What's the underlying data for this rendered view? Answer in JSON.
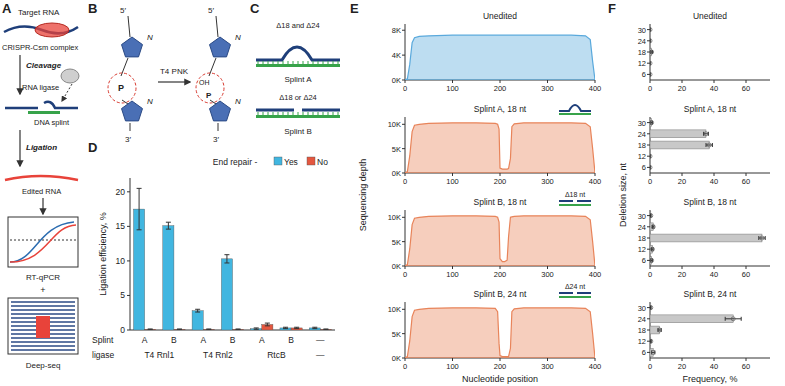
{
  "panel_labels": [
    "A",
    "B",
    "C",
    "D",
    "E",
    "F"
  ],
  "diagram_a": {
    "target": "Target RNA",
    "complex": "CRISPR-Csm complex",
    "cleavage": "Cleavage",
    "ligase": "RNA ligase",
    "splint": "DNA splint",
    "ligation": "Ligation",
    "edited": "Edited RNA",
    "qpcr": "RT-qPCR",
    "plus": "+",
    "seq": "Deep-seq"
  },
  "diagram_b": {
    "five": "5′",
    "three": "3′",
    "enzyme": "T4 PNK",
    "base": "N",
    "phosphate": "P",
    "hydroxyl": "OH"
  },
  "diagram_c": {
    "top": "Δ18 and Δ24",
    "a": "Splint A",
    "mid": "Δ18 or Δ24",
    "b": "Splint B"
  },
  "panel_e": {
    "x_label": "Nucleotide position",
    "y_label": "Sequencing depth"
  },
  "panel_f": {
    "x_label": "Frequency, %",
    "y_label": "Deletion size, nt"
  },
  "chart_data": [
    {
      "type": "bar",
      "y_label": "Ligation efficiency, %",
      "categories": [
        "A",
        "B",
        "A",
        "B",
        "A",
        "B",
        "—"
      ],
      "group_labels": [
        "T4 Rnl1",
        "T4 Rnl1",
        "T4 Rnl2",
        "T4 Rnl2",
        "RtcB",
        "RtcB",
        "—"
      ],
      "row_labels": [
        "Splint",
        "ligase"
      ],
      "legend_title": "End repair -",
      "legend": "top-right",
      "series": [
        {
          "name": "Yes",
          "color": "#41b6e0",
          "values": [
            17.5,
            15.1,
            2.8,
            10.3,
            0.2,
            0.3,
            0.3
          ],
          "errors": [
            3.0,
            0.5,
            0.2,
            0.6,
            0.1,
            0.1,
            0.1
          ]
        },
        {
          "name": "No",
          "color": "#e4573f",
          "values": [
            0.1,
            0.1,
            0.1,
            0.1,
            0.8,
            0.3,
            0.1
          ],
          "errors": [
            0.05,
            0.05,
            0.05,
            0.05,
            0.2,
            0.1,
            0.05
          ]
        }
      ],
      "ylim": [
        0,
        22
      ],
      "yticks": [
        0,
        5,
        10,
        15,
        20
      ]
    },
    {
      "type": "area",
      "title": "Unedited",
      "color": "#5aa9dc",
      "x": [
        0,
        5,
        10,
        15,
        20,
        30,
        50,
        100,
        150,
        190,
        195,
        198,
        200,
        205,
        210,
        215,
        218,
        222,
        225,
        230,
        250,
        300,
        350,
        380,
        390,
        395,
        400
      ],
      "values": [
        0,
        200,
        2500,
        6000,
        6800,
        7000,
        7100,
        7200,
        7200,
        7200,
        7200,
        7200,
        7200,
        7200,
        7200,
        7200,
        7200,
        7200,
        7200,
        7200,
        7200,
        7200,
        7200,
        7100,
        6500,
        3000,
        0
      ],
      "xlim": [
        0,
        400
      ],
      "xticks": [
        0,
        100,
        200,
        300,
        400
      ],
      "ylim": [
        0,
        9000
      ],
      "yticks": [
        {
          "value": 0,
          "label": "0K"
        },
        {
          "value": 4000,
          "label": "4K"
        },
        {
          "value": 8000,
          "label": "8K"
        }
      ]
    },
    {
      "type": "area",
      "title": "Splint A, 18 nt",
      "color": "#e8845a",
      "x": [
        0,
        5,
        10,
        15,
        20,
        30,
        50,
        100,
        150,
        190,
        195,
        198,
        200,
        205,
        210,
        215,
        218,
        222,
        225,
        230,
        250,
        300,
        350,
        380,
        390,
        395,
        400
      ],
      "values": [
        0,
        300,
        3500,
        8500,
        9800,
        10000,
        10200,
        10300,
        10300,
        10200,
        10000,
        9000,
        1000,
        800,
        800,
        800,
        900,
        3000,
        9500,
        10100,
        10300,
        10300,
        10300,
        10200,
        9500,
        5000,
        0
      ],
      "xlim": [
        0,
        400
      ],
      "xticks": [
        0,
        100,
        200,
        300,
        400
      ],
      "ylim": [
        0,
        11500
      ],
      "yticks": [
        {
          "value": 0,
          "label": "0K"
        },
        {
          "value": 5000,
          "label": "5K"
        },
        {
          "value": 10000,
          "label": "10K"
        }
      ]
    },
    {
      "type": "area",
      "title": "Splint B, 18 nt",
      "annotation": "Δ18 nt",
      "color": "#e8845a",
      "x": [
        0,
        5,
        10,
        15,
        20,
        30,
        50,
        100,
        150,
        190,
        195,
        198,
        200,
        205,
        210,
        215,
        218,
        222,
        225,
        230,
        250,
        300,
        350,
        380,
        390,
        395,
        400
      ],
      "values": [
        0,
        300,
        3500,
        8500,
        9800,
        10000,
        10200,
        10300,
        10300,
        10200,
        10000,
        9000,
        1500,
        900,
        900,
        1200,
        6000,
        10000,
        10100,
        10200,
        10300,
        10300,
        10300,
        10200,
        9500,
        5000,
        0
      ],
      "xlim": [
        0,
        400
      ],
      "xticks": [
        0,
        100,
        200,
        300,
        400
      ],
      "ylim": [
        0,
        11500
      ],
      "yticks": [
        {
          "value": 0,
          "label": "0K"
        },
        {
          "value": 5000,
          "label": "5K"
        },
        {
          "value": 10000,
          "label": "10K"
        }
      ]
    },
    {
      "type": "area",
      "title": "Splint B, 24 nt",
      "annotation": "Δ24 nt",
      "color": "#e8845a",
      "x": [
        0,
        5,
        10,
        15,
        20,
        30,
        50,
        100,
        150,
        190,
        195,
        198,
        200,
        205,
        210,
        215,
        218,
        222,
        225,
        230,
        250,
        300,
        350,
        380,
        390,
        395,
        400
      ],
      "values": [
        0,
        300,
        3500,
        8500,
        9800,
        10000,
        10200,
        10300,
        10300,
        10200,
        9500,
        3000,
        500,
        300,
        300,
        300,
        300,
        2000,
        9500,
        10100,
        10300,
        10300,
        10300,
        10200,
        9500,
        5000,
        0
      ],
      "xlim": [
        0,
        400
      ],
      "xticks": [
        0,
        100,
        200,
        300,
        400
      ],
      "ylim": [
        0,
        11500
      ],
      "yticks": [
        {
          "value": 0,
          "label": "0K"
        },
        {
          "value": 5000,
          "label": "5K"
        },
        {
          "value": 10000,
          "label": "10K"
        }
      ]
    },
    {
      "type": "bar",
      "orientation": "horizontal",
      "title": "Unedited",
      "categories": [
        "6",
        "12",
        "18",
        "24",
        "30"
      ],
      "values": [
        0,
        0,
        1,
        0,
        0
      ],
      "errors": [
        0,
        0,
        0.5,
        0,
        0
      ],
      "color": "#c8c8c8",
      "xlim": [
        0,
        75
      ],
      "xticks": [
        0,
        20,
        40,
        60
      ]
    },
    {
      "type": "bar",
      "orientation": "horizontal",
      "title": "Splint A, 18 nt",
      "categories": [
        "6",
        "12",
        "18",
        "24",
        "30"
      ],
      "values": [
        0,
        0,
        37,
        35,
        1
      ],
      "errors": [
        0,
        0,
        2,
        1.5,
        0.5
      ],
      "color": "#c8c8c8",
      "xlim": [
        0,
        75
      ],
      "xticks": [
        0,
        20,
        40,
        60
      ]
    },
    {
      "type": "bar",
      "orientation": "horizontal",
      "title": "Splint B, 18 nt",
      "categories": [
        "6",
        "12",
        "18",
        "24",
        "30"
      ],
      "values": [
        1,
        1.5,
        70,
        2,
        0.5
      ],
      "errors": [
        0.5,
        0.5,
        2,
        0.5,
        0.2
      ],
      "color": "#c8c8c8",
      "xlim": [
        0,
        75
      ],
      "xticks": [
        0,
        20,
        40,
        60
      ]
    },
    {
      "type": "bar",
      "orientation": "horizontal",
      "title": "Splint B, 24 nt",
      "categories": [
        "6",
        "12",
        "18",
        "24",
        "30"
      ],
      "values": [
        2,
        0.5,
        6,
        52,
        0.5
      ],
      "errors": [
        1,
        0.3,
        1,
        5,
        0.2
      ],
      "color": "#c8c8c8",
      "xlim": [
        0,
        75
      ],
      "xticks": [
        0,
        20,
        40,
        60
      ]
    }
  ]
}
